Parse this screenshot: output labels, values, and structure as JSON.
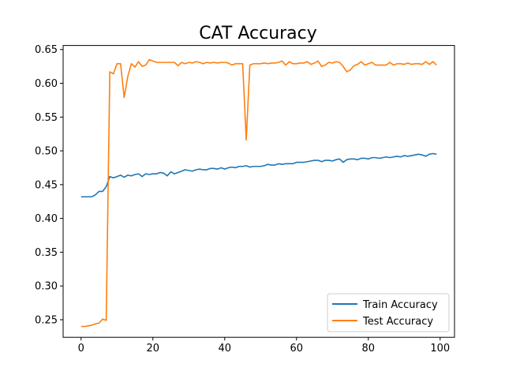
{
  "chart_data": {
    "type": "line",
    "title": "CAT Accuracy",
    "xlabel": "",
    "ylabel": "",
    "xlim": [
      -5,
      104
    ],
    "ylim": [
      0.224,
      0.656
    ],
    "x_ticks": [
      0,
      20,
      40,
      60,
      80,
      100
    ],
    "y_ticks": [
      0.25,
      0.3,
      0.35,
      0.4,
      0.45,
      0.5,
      0.55,
      0.6,
      0.65
    ],
    "x_tick_labels": [
      "0",
      "20",
      "40",
      "60",
      "80",
      "100"
    ],
    "y_tick_labels": [
      "0.25",
      "0.30",
      "0.35",
      "0.40",
      "0.45",
      "0.50",
      "0.55",
      "0.60",
      "0.65"
    ],
    "grid": false,
    "legend_position": "lower-right",
    "series": [
      {
        "name": "Train Accuracy",
        "color": "#1f77b4",
        "values": [
          0.432,
          0.432,
          0.432,
          0.432,
          0.435,
          0.44,
          0.44,
          0.447,
          0.462,
          0.46,
          0.462,
          0.464,
          0.461,
          0.464,
          0.463,
          0.465,
          0.466,
          0.462,
          0.466,
          0.465,
          0.466,
          0.466,
          0.468,
          0.467,
          0.463,
          0.469,
          0.466,
          0.468,
          0.47,
          0.472,
          0.471,
          0.47,
          0.472,
          0.473,
          0.472,
          0.472,
          0.474,
          0.474,
          0.473,
          0.475,
          0.473,
          0.475,
          0.476,
          0.475,
          0.477,
          0.477,
          0.478,
          0.476,
          0.477,
          0.477,
          0.477,
          0.478,
          0.48,
          0.479,
          0.479,
          0.481,
          0.48,
          0.481,
          0.481,
          0.481,
          0.483,
          0.483,
          0.483,
          0.484,
          0.485,
          0.486,
          0.486,
          0.484,
          0.486,
          0.486,
          0.485,
          0.487,
          0.488,
          0.483,
          0.487,
          0.488,
          0.488,
          0.487,
          0.489,
          0.489,
          0.488,
          0.49,
          0.49,
          0.489,
          0.49,
          0.491,
          0.49,
          0.491,
          0.492,
          0.491,
          0.493,
          0.492,
          0.493,
          0.494,
          0.495,
          0.494,
          0.492,
          0.495,
          0.496,
          0.495
        ]
      },
      {
        "name": "Test Accuracy",
        "color": "#ff7f0e",
        "values": [
          0.24,
          0.24,
          0.241,
          0.242,
          0.244,
          0.245,
          0.251,
          0.249,
          0.617,
          0.614,
          0.629,
          0.629,
          0.579,
          0.61,
          0.629,
          0.624,
          0.632,
          0.625,
          0.627,
          0.635,
          0.633,
          0.631,
          0.631,
          0.631,
          0.631,
          0.631,
          0.631,
          0.626,
          0.631,
          0.629,
          0.631,
          0.63,
          0.632,
          0.631,
          0.629,
          0.631,
          0.63,
          0.631,
          0.63,
          0.631,
          0.631,
          0.63,
          0.627,
          0.629,
          0.629,
          0.629,
          0.516,
          0.627,
          0.629,
          0.629,
          0.629,
          0.63,
          0.629,
          0.63,
          0.63,
          0.631,
          0.633,
          0.627,
          0.632,
          0.629,
          0.629,
          0.63,
          0.63,
          0.632,
          0.628,
          0.63,
          0.633,
          0.625,
          0.627,
          0.631,
          0.63,
          0.632,
          0.631,
          0.625,
          0.617,
          0.62,
          0.626,
          0.628,
          0.632,
          0.627,
          0.629,
          0.631,
          0.627,
          0.627,
          0.627,
          0.627,
          0.631,
          0.627,
          0.629,
          0.629,
          0.628,
          0.63,
          0.628,
          0.629,
          0.629,
          0.628,
          0.632,
          0.628,
          0.632,
          0.627
        ]
      }
    ]
  }
}
